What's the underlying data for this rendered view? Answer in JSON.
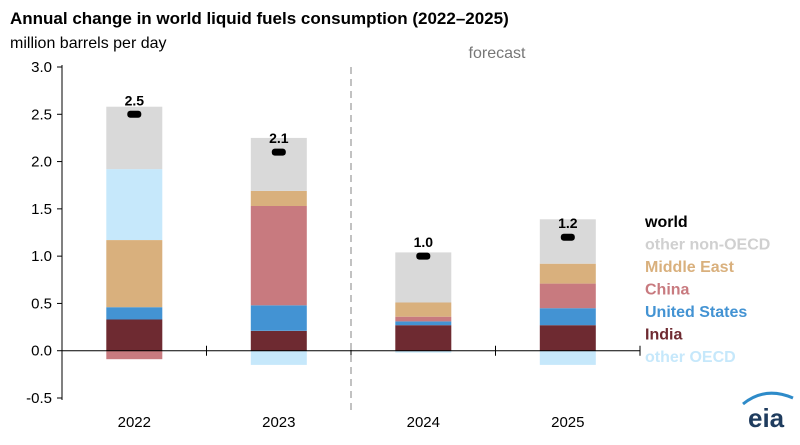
{
  "chart_data": {
    "type": "bar",
    "stacked": true,
    "title": "Annual change in world liquid fuels consumption (2022–2025)",
    "ylabel": "million barrels per day",
    "ylim": [
      -0.5,
      3.0
    ],
    "yticks": [
      "3.0",
      "2.5",
      "2.0",
      "1.5",
      "1.0",
      "0.5",
      "0.0",
      "-0.5"
    ],
    "ytick_values": [
      3.0,
      2.5,
      2.0,
      1.5,
      1.0,
      0.5,
      0.0,
      -0.5
    ],
    "categories": [
      "2022",
      "2023",
      "2024",
      "2025"
    ],
    "forecast_label": "forecast",
    "forecast_divider_after": "2023",
    "legend_position": "right",
    "grid": false,
    "series": [
      {
        "name": "India",
        "color": "#6e2a31",
        "values": [
          0.33,
          0.21,
          0.27,
          0.27
        ]
      },
      {
        "name": "United States",
        "color": "#4393d3",
        "values": [
          0.13,
          0.27,
          0.04,
          0.18
        ]
      },
      {
        "name": "China",
        "color": "#c87a7f",
        "values": [
          -0.09,
          1.05,
          0.05,
          0.26
        ]
      },
      {
        "name": "Middle East",
        "color": "#d9b07d",
        "values": [
          0.71,
          0.16,
          0.15,
          0.21
        ]
      },
      {
        "name": "other OECD",
        "color": "#c6e8fb",
        "values": [
          0.75,
          -0.15,
          -0.02,
          -0.15
        ]
      },
      {
        "name": "other non-OECD",
        "color": "#d9d9d9",
        "values": [
          0.66,
          0.56,
          0.53,
          0.47
        ]
      }
    ],
    "world": {
      "name": "world",
      "color": "#000000",
      "values": [
        2.5,
        2.1,
        1.0,
        1.2
      ],
      "labels": [
        "2.5",
        "2.1",
        "1.0",
        "1.2"
      ]
    },
    "legend": [
      {
        "label": "world",
        "color": "#000000"
      },
      {
        "label": "other non-OECD",
        "color": "#d0d0d0"
      },
      {
        "label": "Middle East",
        "color": "#d9b07d"
      },
      {
        "label": "China",
        "color": "#c87a7f"
      },
      {
        "label": "United States",
        "color": "#4393d3"
      },
      {
        "label": "India",
        "color": "#6e2a31"
      },
      {
        "label": "other OECD",
        "color": "#c6e8fb"
      }
    ]
  },
  "branding": {
    "logo_text": "eia"
  }
}
